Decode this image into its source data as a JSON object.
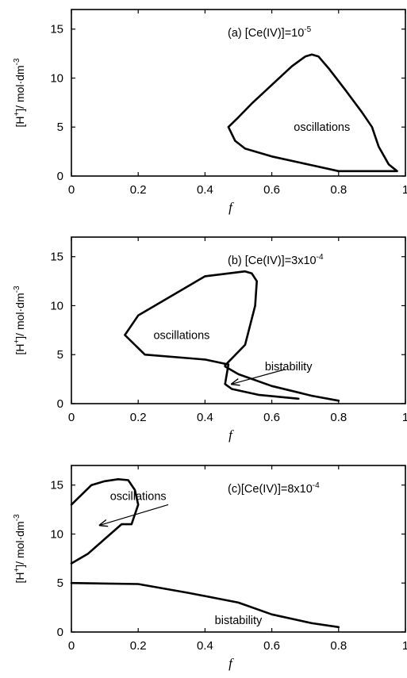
{
  "chart_data": [
    {
      "type": "line",
      "title": "(a) [Ce(IV)]=10",
      "title_sup": "-5",
      "xlabel": "f",
      "ylabel": "[H",
      "ylabel_sup1": "+",
      "ylabel_mid": "]/ mol·dm",
      "ylabel_sup2": "-3",
      "xlim": [
        0,
        1
      ],
      "ylim": [
        0,
        17
      ],
      "xticks": [
        "0",
        "0.2",
        "0.4",
        "0.6",
        "0.8",
        "1"
      ],
      "yticks": [
        "0",
        "5",
        "10",
        "15"
      ],
      "series": [
        {
          "x": [
            0.8,
            0.72,
            0.6,
            0.52,
            0.49,
            0.47,
            0.5,
            0.54,
            0.6,
            0.66,
            0.7,
            0.72,
            0.74,
            0.77,
            0.82,
            0.87,
            0.9,
            0.92,
            0.95,
            0.975,
            0.8
          ],
          "y": [
            0.5,
            1.1,
            2.0,
            2.8,
            3.6,
            5.0,
            6.0,
            7.4,
            9.3,
            11.2,
            12.2,
            12.4,
            12.2,
            11.0,
            8.8,
            6.5,
            5.0,
            3.0,
            1.2,
            0.5,
            0.5
          ]
        }
      ],
      "annotations": [
        {
          "text": "oscillations",
          "x": 0.75,
          "y": 5.0
        }
      ]
    },
    {
      "type": "line",
      "title": "(b) [Ce(IV)]=3x10",
      "title_sup": "-4",
      "xlabel": "f",
      "ylabel": "[H",
      "ylabel_sup1": "+",
      "ylabel_mid": "]/ mol·dm",
      "ylabel_sup2": "-3",
      "xlim": [
        0,
        1
      ],
      "ylim": [
        0,
        17
      ],
      "xticks": [
        "0",
        "0.2",
        "0.4",
        "0.6",
        "0.8",
        "1"
      ],
      "yticks": [
        "0",
        "5",
        "10",
        "15"
      ],
      "series": [
        {
          "x": [
            0.8,
            0.72,
            0.6,
            0.5,
            0.46,
            0.46,
            0.52,
            0.55,
            0.555,
            0.54,
            0.52,
            0.4,
            0.2,
            0.16,
            0.22,
            0.4,
            0.47,
            0.46,
            0.48,
            0.56,
            0.68
          ],
          "y": [
            0.3,
            0.8,
            1.8,
            3.0,
            3.8,
            3.9,
            6.0,
            10.0,
            12.5,
            13.3,
            13.5,
            13.0,
            9.0,
            7.0,
            5.0,
            4.5,
            4.0,
            2.0,
            1.5,
            0.9,
            0.5
          ]
        }
      ],
      "annotations": [
        {
          "text": "oscillations",
          "x": 0.33,
          "y": 7.0
        },
        {
          "text": "bistability",
          "x": 0.65,
          "y": 3.8
        }
      ],
      "arrows": [
        {
          "from": [
            0.64,
            3.5
          ],
          "to": [
            0.48,
            2.0
          ]
        }
      ]
    },
    {
      "type": "line",
      "title": "(c)[Ce(IV)]=8x10",
      "title_sup": "-4",
      "xlabel": "f",
      "ylabel": "[H",
      "ylabel_sup1": "+",
      "ylabel_mid": "]/ mol·dm",
      "ylabel_sup2": "-3",
      "xlim": [
        0,
        1
      ],
      "ylim": [
        0,
        17
      ],
      "xticks": [
        "0",
        "0.2",
        "0.4",
        "0.6",
        "0.8",
        "1"
      ],
      "yticks": [
        "0",
        "5",
        "10",
        "15"
      ],
      "series": [
        {
          "x": [
            0.0,
            0.05,
            0.1,
            0.15,
            0.18,
            0.2,
            0.19,
            0.17,
            0.14,
            0.1,
            0.06,
            0.0
          ],
          "y": [
            7.0,
            8.0,
            9.5,
            11.0,
            11.0,
            13.0,
            14.5,
            15.5,
            15.6,
            15.4,
            15.0,
            13.0
          ]
        },
        {
          "x": [
            0.0,
            0.2,
            0.35,
            0.5,
            0.6,
            0.72,
            0.8
          ],
          "y": [
            5.0,
            4.9,
            4.0,
            3.0,
            1.8,
            0.9,
            0.5
          ]
        }
      ],
      "annotations": [
        {
          "text": "oscillations",
          "x": 0.2,
          "y": 13.9
        },
        {
          "text": "bistability",
          "x": 0.5,
          "y": 1.2
        }
      ],
      "arrows": [
        {
          "from": [
            0.29,
            13.0
          ],
          "to": [
            0.085,
            10.9
          ]
        }
      ]
    }
  ]
}
